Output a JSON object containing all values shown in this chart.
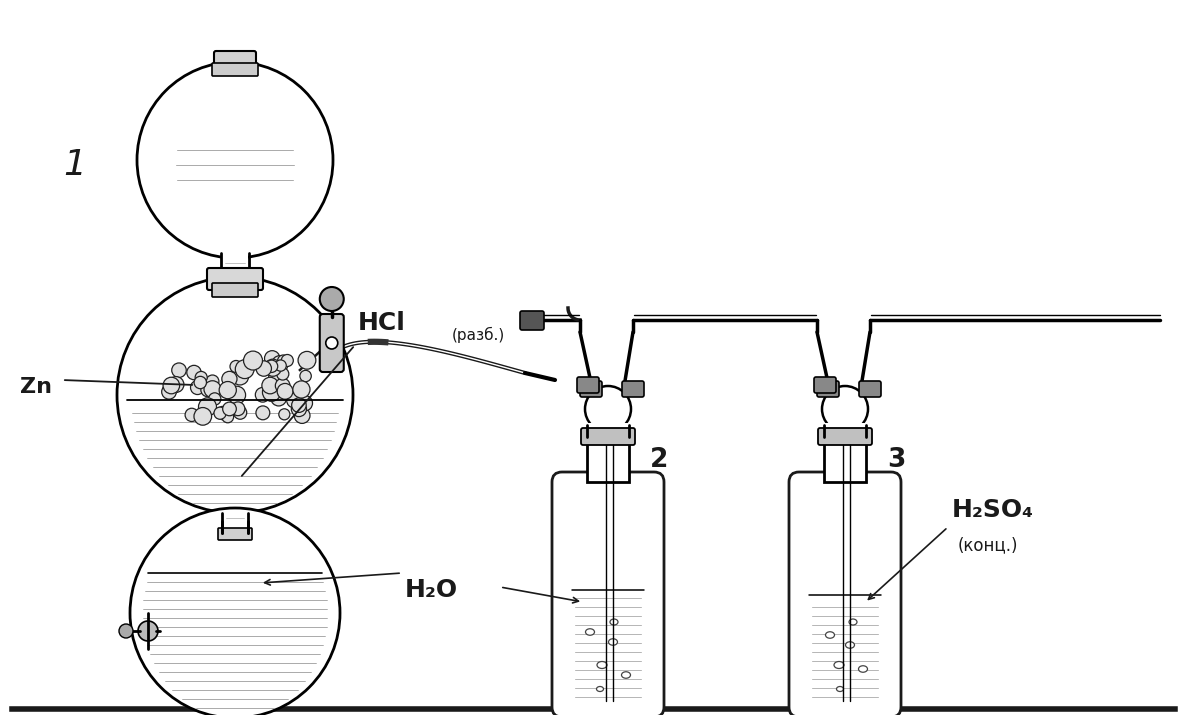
{
  "title": "",
  "bg_color": "#ffffff",
  "line_color": "#1a1a1a",
  "label_1": "1",
  "label_2": "2",
  "label_3": "3",
  "label_zn": "Zn",
  "label_hcl": "HCl",
  "label_razb": "(разб.)",
  "label_h2o": "H₂O",
  "label_h2so4": "H₂SO₄",
  "label_konc": "(конц.)",
  "figsize": [
    11.88,
    7.15
  ],
  "dpi": 100
}
